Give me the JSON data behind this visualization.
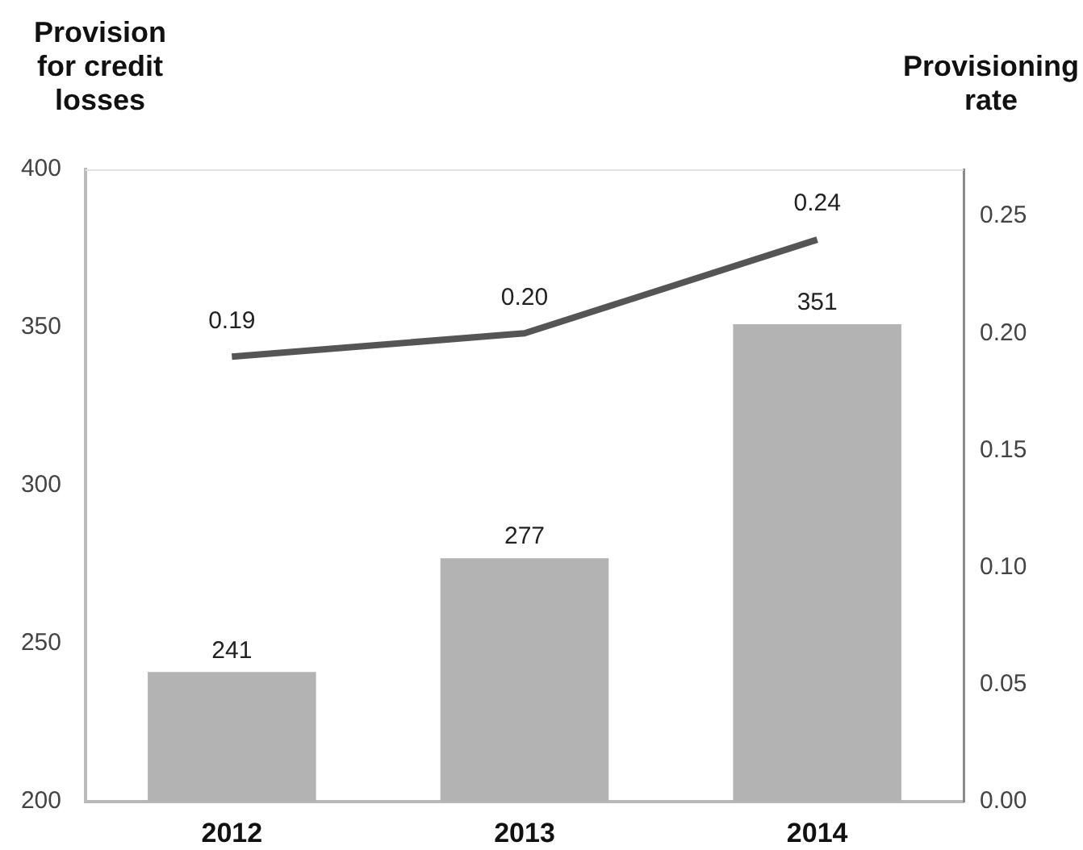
{
  "chart_data": {
    "type": "bar",
    "ylabel": "Provision for credit losses",
    "y2label": "Provisioning rate",
    "categories": [
      "2012",
      "2013",
      "2014"
    ],
    "series": [
      {
        "color": "#b3b3b3",
        "values": [
          241,
          277,
          351
        ],
        "value_labels": [
          "241",
          "277",
          "351"
        ]
      },
      {
        "type": "line",
        "axis": "y2",
        "color": "#555555",
        "values": [
          0.19,
          0.2,
          0.24
        ],
        "value_labels": [
          "0.19",
          "0.20",
          "0.24"
        ]
      }
    ],
    "ylim": [
      200,
      400
    ],
    "yticks": [
      200,
      250,
      300,
      350,
      400
    ],
    "y2lim": [
      0,
      0.27
    ],
    "y2ticks": [
      {
        "value": 0,
        "label": "0.00"
      },
      0.05,
      {
        "value": 0.1,
        "label": "0.10"
      },
      0.15,
      {
        "value": 0.2,
        "label": "0.20"
      },
      0.25
    ],
    "grid": false,
    "legend": false,
    "marker": "none"
  }
}
